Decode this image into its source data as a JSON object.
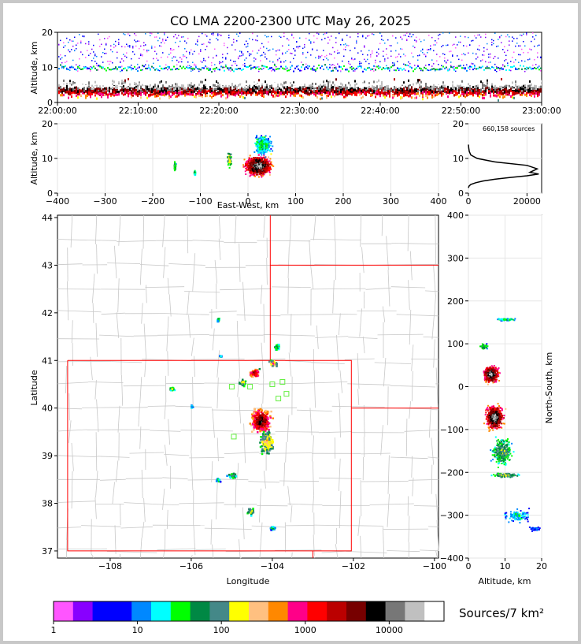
{
  "header": {
    "title": "CO LMA 2200-2300 UTC May 26, 2025"
  },
  "colorbar": {
    "title": "Sources/7 km²",
    "tick_labels": [
      "1",
      "10",
      "100",
      "1000",
      "10000"
    ],
    "colors": [
      "#ff55ff",
      "#8800ff",
      "#0000ff",
      "#0000ff",
      "#0088ff",
      "#00ffff",
      "#00ff00",
      "#008844",
      "#448888",
      "#ffff00",
      "#ffc080",
      "#ff8800",
      "#ff0088",
      "#ff0000",
      "#bb0000",
      "#770000",
      "#000000",
      "#777777",
      "#c0c0c0",
      "#ffffff"
    ]
  },
  "chart_data": [
    {
      "type": "heatmap",
      "name": "altitude-vs-time",
      "title": "CO LMA 2200-2300 UTC May 26, 2025",
      "xlabel": "",
      "ylabel": "Altitude, km",
      "x_ticks": [
        "22:00:00",
        "22:10:00",
        "22:20:00",
        "22:30:00",
        "22:40:00",
        "22:50:00",
        "23:00:00"
      ],
      "ylim": [
        0,
        20
      ],
      "y_ticks": [
        "0",
        "10",
        "20"
      ]
    },
    {
      "type": "heatmap",
      "name": "altitude-vs-east-west",
      "xlabel": "East-West, km",
      "ylabel": "Altitude, km",
      "xlim": [
        -400,
        400
      ],
      "x_ticks": [
        "−400",
        "−300",
        "−200",
        "−100",
        "0",
        "100",
        "200",
        "300",
        "400"
      ],
      "ylim": [
        0,
        20
      ],
      "y_ticks": [
        "0",
        "10",
        "20"
      ]
    },
    {
      "type": "line",
      "name": "altitude-histogram",
      "annotation": "660,158 sources",
      "xlim": [
        0,
        25000
      ],
      "x_ticks": [
        "0",
        "20000"
      ],
      "ylim": [
        0,
        20
      ],
      "y_ticks": [
        "0",
        "10",
        "20"
      ],
      "x": [
        0,
        200,
        800,
        2500,
        5000,
        9000,
        14000,
        20000,
        24000,
        21000,
        23500,
        20000,
        9000,
        3000,
        800,
        300,
        100,
        0
      ],
      "y": [
        1.5,
        2,
        2.5,
        3,
        3.5,
        4,
        4.5,
        5,
        5.5,
        6,
        7,
        8,
        9,
        10,
        11,
        12,
        13,
        14
      ]
    },
    {
      "type": "heatmap",
      "name": "plan-view-map",
      "xlabel": "Longitude",
      "ylabel": "Latitude",
      "xlim": [
        -109.3,
        -99.9
      ],
      "x_ticks": [
        "−108",
        "−106",
        "−104",
        "−102",
        "−100"
      ],
      "ylim": [
        36.85,
        44.05
      ],
      "y_ticks": [
        "37",
        "38",
        "39",
        "40",
        "41",
        "42",
        "43",
        "44"
      ],
      "stations": [
        [
          -105.0,
          40.45
        ],
        [
          -104.55,
          40.45
        ],
        [
          -104.0,
          40.5
        ],
        [
          -103.75,
          40.55
        ],
        [
          -103.65,
          40.3
        ],
        [
          -103.85,
          40.2
        ],
        [
          -104.95,
          39.4
        ]
      ]
    },
    {
      "type": "heatmap",
      "name": "north-south-vs-altitude",
      "xlabel": "Altitude, km",
      "ylabel": "North-South, km",
      "xlim": [
        0,
        20
      ],
      "x_ticks": [
        "0",
        "10",
        "20"
      ],
      "ylim": [
        -400,
        400
      ],
      "y_ticks": [
        "−400",
        "−300",
        "−200",
        "−100",
        "0",
        "100",
        "200",
        "300",
        "400"
      ]
    }
  ]
}
